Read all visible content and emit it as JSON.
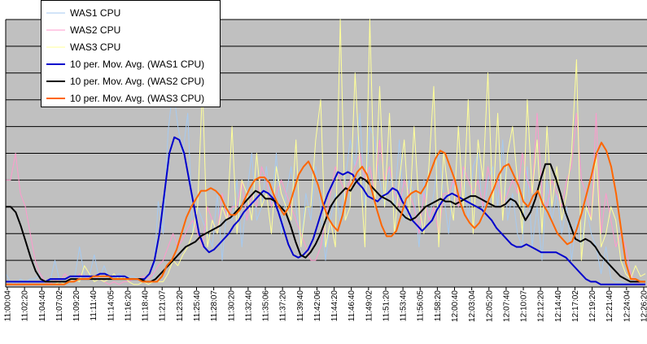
{
  "chart_data": {
    "type": "line",
    "title": "",
    "xlabel": "",
    "ylabel": "",
    "ylim": [
      0,
      10
    ],
    "grid": true,
    "plot_background": "#c0c0c0",
    "legend_position": "top-left",
    "x_ticks": [
      "11:00:04",
      "11:02:20",
      "11:04:40",
      "11:07:02",
      "11:09:20",
      "11:11:40",
      "11:14:05",
      "11:16:20",
      "11:18:40",
      "11:21:07",
      "11:23:20",
      "11:25:40",
      "11:28:07",
      "11:30:20",
      "11:32:40",
      "11:35:06",
      "11:37:20",
      "11:39:40",
      "11:42:06",
      "11:44:20",
      "11:46:40",
      "11:49:02",
      "11:51:20",
      "11:53:40",
      "11:56:05",
      "11:58:20",
      "12:00:40",
      "12:03:04",
      "12:05:20",
      "12:07:40",
      "12:10:07",
      "12:12:20",
      "12:14:40",
      "12:17:02",
      "12:19:20",
      "12:21:40",
      "12:24:04",
      "12:26:20"
    ],
    "series": [
      {
        "name": "WAS1 CPU",
        "kind": "raw",
        "color": "#a6caf0",
        "width": 1,
        "values": [
          0.5,
          0.2,
          0.1,
          0.3,
          0.2,
          0.3,
          0.3,
          0.5,
          0.2,
          0.2,
          1.0,
          0.2,
          0.3,
          0.2,
          0.3,
          1.5,
          0.4,
          0.4,
          1.2,
          0.3,
          0.8,
          0.3,
          0.4,
          0.5,
          0.4,
          0.4,
          0.4,
          0.3,
          0.2,
          0.2,
          0.2,
          3.2,
          2.0,
          5.8,
          7.5,
          6.0,
          5.0,
          6.5,
          2.0,
          3.0,
          2.5,
          2.0,
          1.5,
          3.5,
          1.0,
          3.0,
          2.5,
          4.0,
          1.5,
          3.5,
          5.0,
          2.5,
          3.0,
          4.5,
          3.0,
          5.0,
          2.0,
          3.5,
          4.5,
          3.0,
          1.5,
          3.5,
          2.5,
          4.5,
          3.0,
          1.0,
          2.5,
          3.5,
          2.5,
          4.0,
          5.5,
          4.5,
          6.5,
          3.0,
          6.0,
          5.5,
          4.0,
          3.0,
          4.5,
          3.0,
          5.5,
          2.5,
          4.0,
          3.5,
          1.5,
          4.0,
          2.5,
          3.5,
          5.0,
          3.5,
          2.0,
          4.0,
          3.0,
          4.5,
          2.5,
          4.5,
          5.0,
          2.5,
          4.0,
          4.5,
          3.0,
          5.5,
          2.5,
          3.5,
          2.0,
          1.5,
          4.5,
          1.5,
          3.0,
          1.0,
          4.0,
          2.5,
          3.5,
          2.0,
          3.0,
          1.0,
          2.5,
          1.5,
          3.0,
          2.0,
          1.5,
          0.5,
          1.5,
          0.3,
          0.2,
          0.2,
          0.1,
          0.1,
          0.2,
          0.1,
          0.1
        ]
      },
      {
        "name": "WAS2 CPU",
        "kind": "raw",
        "color": "#ff99cc",
        "width": 1,
        "values": [
          4.0,
          4.0,
          5.0,
          3.5,
          3.0,
          2.0,
          1.0,
          0.5,
          0.2,
          0.1,
          0.3,
          0.2,
          0.5,
          0.3,
          0.2,
          0.5,
          0.4,
          0.3,
          0.4,
          0.3,
          0.2,
          0.1,
          0.2,
          0.1,
          0.2,
          0.2,
          0.3,
          0.3,
          0.4,
          0.3,
          0.5,
          0.8,
          1.0,
          1.5,
          2.0,
          1.5,
          1.8,
          2.2,
          2.5,
          2.0,
          1.5,
          3.0,
          2.5,
          2.0,
          3.5,
          2.5,
          3.0,
          3.0,
          4.0,
          2.5,
          3.5,
          3.0,
          4.5,
          4.0,
          3.0,
          3.5,
          4.0,
          3.5,
          3.0,
          2.5,
          2.0,
          1.5,
          1.0,
          1.0,
          1.5,
          2.5,
          3.5,
          4.5,
          4.0,
          3.5,
          4.0,
          4.5,
          5.0,
          4.0,
          4.5,
          3.5,
          5.5,
          4.0,
          4.5,
          3.5,
          3.0,
          4.0,
          3.5,
          3.0,
          2.0,
          3.5,
          2.5,
          3.0,
          2.0,
          3.5,
          3.5,
          4.0,
          3.0,
          4.5,
          4.0,
          3.5,
          4.0,
          3.0,
          4.5,
          3.5,
          4.0,
          3.0,
          3.5,
          4.0,
          3.5,
          5.0,
          4.0,
          3.5,
          6.5,
          3.5,
          3.0,
          4.0,
          3.5,
          3.0,
          4.0,
          4.5,
          6.5,
          4.0,
          3.5,
          2.5,
          6.5,
          2.0,
          3.5,
          2.5,
          1.5,
          2.0,
          1.5,
          0.5,
          0.2,
          0.1,
          0.1
        ]
      },
      {
        "name": "WAS3 CPU",
        "kind": "raw",
        "color": "#ffff99",
        "width": 1,
        "values": [
          0.1,
          0.1,
          0.1,
          0.1,
          0.1,
          0.1,
          0.1,
          0.1,
          0.1,
          0.1,
          0.1,
          0.2,
          0.1,
          0.2,
          0.3,
          0.2,
          0.8,
          0.5,
          0.2,
          0.3,
          0.2,
          0.3,
          0.5,
          0.3,
          0.4,
          0.2,
          0.1,
          0.1,
          0.2,
          0.1,
          0.2,
          0.2,
          0.2,
          0.5,
          1.0,
          0.8,
          1.2,
          1.5,
          2.0,
          3.0,
          7.5,
          1.5,
          2.5,
          2.0,
          3.0,
          2.5,
          6.0,
          2.0,
          4.0,
          3.5,
          2.5,
          5.0,
          3.0,
          3.5,
          2.0,
          4.5,
          3.5,
          3.0,
          2.5,
          5.5,
          1.5,
          3.0,
          3.0,
          5.5,
          7.0,
          1.5,
          2.5,
          1.5,
          10.0,
          2.5,
          3.0,
          8.0,
          4.5,
          1.5,
          10.0,
          3.0,
          7.5,
          3.0,
          6.5,
          2.0,
          4.0,
          5.5,
          2.5,
          6.0,
          3.0,
          2.0,
          4.5,
          7.5,
          1.5,
          5.0,
          3.5,
          2.5,
          6.0,
          3.0,
          7.0,
          2.0,
          5.5,
          4.0,
          8.0,
          3.0,
          6.5,
          2.5,
          5.0,
          6.0,
          4.0,
          2.0,
          7.0,
          3.5,
          5.5,
          2.0,
          6.0,
          3.0,
          4.5,
          2.5,
          3.5,
          5.0,
          8.5,
          1.0,
          3.0,
          2.5,
          5.0,
          1.5,
          2.0,
          3.0,
          2.5,
          1.0,
          0.5,
          0.3,
          0.8,
          0.4,
          0.5
        ]
      },
      {
        "name": "10 per. Mov. Avg. (WAS1 CPU)",
        "kind": "avg",
        "color": "#0000cc",
        "width": 2,
        "values": [
          0.2,
          0.2,
          0.2,
          0.2,
          0.2,
          0.2,
          0.2,
          0.2,
          0.2,
          0.3,
          0.3,
          0.3,
          0.3,
          0.4,
          0.4,
          0.4,
          0.4,
          0.4,
          0.4,
          0.5,
          0.5,
          0.4,
          0.4,
          0.4,
          0.4,
          0.3,
          0.3,
          0.3,
          0.3,
          0.5,
          1.0,
          2.0,
          3.5,
          5.0,
          5.6,
          5.5,
          5.0,
          4.0,
          3.0,
          2.0,
          1.5,
          1.3,
          1.4,
          1.6,
          1.8,
          2.0,
          2.3,
          2.5,
          2.8,
          3.0,
          3.2,
          3.4,
          3.6,
          3.5,
          3.3,
          2.8,
          2.2,
          1.6,
          1.2,
          1.1,
          1.2,
          1.4,
          1.8,
          2.4,
          3.0,
          3.5,
          3.9,
          4.3,
          4.2,
          4.3,
          4.2,
          3.9,
          3.7,
          3.4,
          3.3,
          3.2,
          3.4,
          3.5,
          3.7,
          3.6,
          3.2,
          2.9,
          2.5,
          2.3,
          2.1,
          2.3,
          2.5,
          2.9,
          3.2,
          3.4,
          3.5,
          3.4,
          3.3,
          3.2,
          3.1,
          3.0,
          2.9,
          2.7,
          2.5,
          2.2,
          2.0,
          1.8,
          1.6,
          1.5,
          1.5,
          1.6,
          1.5,
          1.4,
          1.3,
          1.3,
          1.3,
          1.3,
          1.2,
          1.1,
          0.9,
          0.7,
          0.5,
          0.3,
          0.2,
          0.2,
          0.1,
          0.1,
          0.1,
          0.1,
          0.1,
          0.1,
          0.1,
          0.1,
          0.1,
          0.1
        ]
      },
      {
        "name": "10 per. Mov. Avg. (WAS2 CPU)",
        "kind": "avg",
        "color": "#000000",
        "width": 2,
        "values": [
          3.0,
          3.0,
          2.8,
          2.3,
          1.7,
          1.1,
          0.6,
          0.3,
          0.2,
          0.2,
          0.2,
          0.2,
          0.2,
          0.3,
          0.3,
          0.3,
          0.3,
          0.3,
          0.3,
          0.3,
          0.3,
          0.3,
          0.3,
          0.3,
          0.3,
          0.3,
          0.3,
          0.3,
          0.2,
          0.2,
          0.3,
          0.5,
          0.7,
          0.9,
          1.1,
          1.3,
          1.5,
          1.6,
          1.7,
          1.9,
          2.0,
          2.1,
          2.2,
          2.3,
          2.5,
          2.6,
          2.8,
          3.0,
          3.2,
          3.4,
          3.6,
          3.5,
          3.3,
          3.3,
          3.2,
          3.0,
          2.8,
          2.3,
          1.7,
          1.2,
          1.1,
          1.3,
          1.6,
          2.0,
          2.5,
          3.0,
          3.3,
          3.5,
          3.7,
          3.6,
          3.9,
          4.1,
          4.0,
          3.8,
          3.6,
          3.4,
          3.3,
          3.2,
          3.0,
          2.8,
          2.6,
          2.5,
          2.6,
          2.8,
          3.0,
          3.1,
          3.2,
          3.3,
          3.2,
          3.2,
          3.1,
          3.2,
          3.3,
          3.4,
          3.4,
          3.3,
          3.2,
          3.1,
          3.0,
          3.0,
          3.1,
          3.3,
          3.2,
          2.9,
          2.5,
          2.8,
          3.3,
          4.0,
          4.6,
          4.6,
          4.1,
          3.5,
          2.8,
          2.3,
          1.8,
          1.7,
          1.8,
          1.7,
          1.5,
          1.2,
          1.0,
          0.8,
          0.6,
          0.4,
          0.3,
          0.2,
          0.2,
          0.2,
          0.2
        ]
      },
      {
        "name": "10 per. Mov. Avg. (WAS3 CPU)",
        "kind": "avg",
        "color": "#ff6600",
        "width": 2,
        "values": [
          0.1,
          0.1,
          0.1,
          0.1,
          0.1,
          0.1,
          0.1,
          0.1,
          0.1,
          0.1,
          0.1,
          0.1,
          0.1,
          0.2,
          0.2,
          0.3,
          0.3,
          0.3,
          0.4,
          0.4,
          0.4,
          0.4,
          0.3,
          0.3,
          0.3,
          0.3,
          0.3,
          0.3,
          0.2,
          0.2,
          0.2,
          0.2,
          0.4,
          0.8,
          1.0,
          1.4,
          2.0,
          2.6,
          3.0,
          3.3,
          3.6,
          3.6,
          3.7,
          3.6,
          3.4,
          3.0,
          2.7,
          2.7,
          2.9,
          3.3,
          3.7,
          4.0,
          4.1,
          4.1,
          3.9,
          3.4,
          3.0,
          2.7,
          3.0,
          3.6,
          4.2,
          4.5,
          4.7,
          4.3,
          3.8,
          3.1,
          2.6,
          2.3,
          2.1,
          2.7,
          3.6,
          3.9,
          4.3,
          4.5,
          4.2,
          3.6,
          2.9,
          2.3,
          1.9,
          1.9,
          2.1,
          2.7,
          3.3,
          3.5,
          3.6,
          3.5,
          3.8,
          4.3,
          4.8,
          5.1,
          5.0,
          4.5,
          4.0,
          3.2,
          2.7,
          2.4,
          2.2,
          2.4,
          2.8,
          3.3,
          3.7,
          4.2,
          4.5,
          4.6,
          4.2,
          3.8,
          3.2,
          3.0,
          3.4,
          3.6,
          3.1,
          2.8,
          2.4,
          2.0,
          1.8,
          1.6,
          1.7,
          2.2,
          2.8,
          3.5,
          4.2,
          5.0,
          5.4,
          5.1,
          4.5,
          3.5,
          2.2,
          0.9,
          0.3,
          0.3,
          0.2,
          0.2
        ]
      }
    ]
  }
}
